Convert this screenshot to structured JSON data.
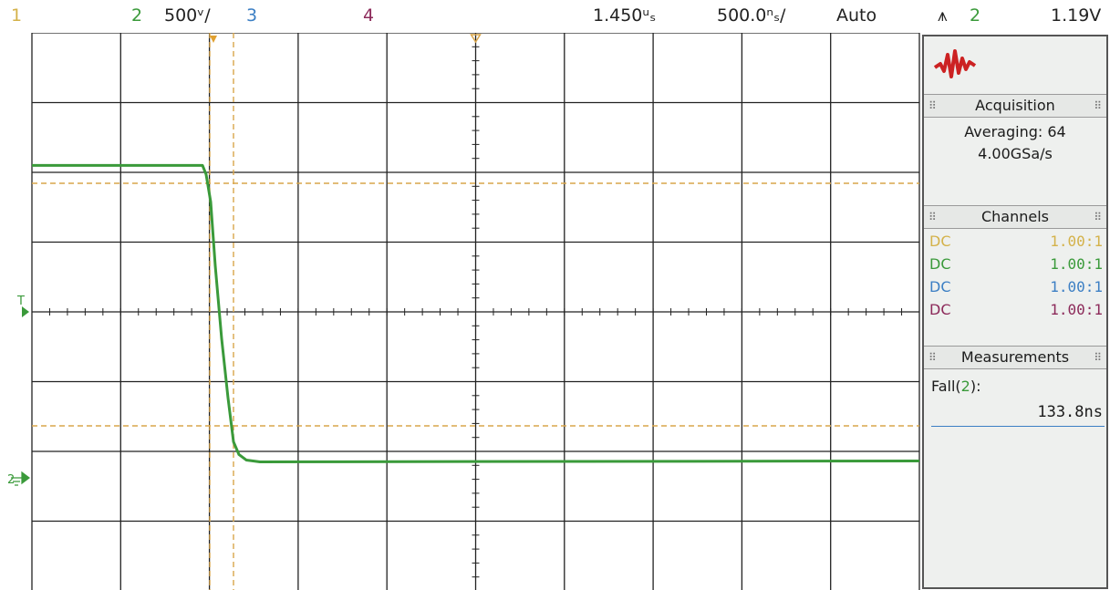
{
  "topbar": {
    "ch1_label": "1",
    "ch2_label": "2",
    "ch2_scale": "500ᵛ/",
    "ch3_label": "3",
    "ch4_label": "4",
    "time_delay": "1.450ᵘₛ",
    "time_scale": "500.0ⁿₛ/",
    "trigger_mode": "Auto",
    "trigger_symbol": "⩚",
    "trigger_channel": "2",
    "trigger_level": "1.19V"
  },
  "colors": {
    "ch1": "#d4b24a",
    "ch2": "#3a9a3a",
    "ch3": "#3c7fc4",
    "ch4": "#8c2a5a",
    "grid": "#222222",
    "cursor": "#d9a54a",
    "logo": "#cc2222"
  },
  "screen": {
    "trigger_marker": "T",
    "ground_marker": "2"
  },
  "panel": {
    "acquisition": {
      "title": "Acquisition",
      "mode": "Averaging: 64",
      "rate": "4.00GSa/s"
    },
    "channels": {
      "title": "Channels",
      "rows": [
        {
          "coupling": "DC",
          "ratio": "1.00:1"
        },
        {
          "coupling": "DC",
          "ratio": "1.00:1"
        },
        {
          "coupling": "DC",
          "ratio": "1.00:1"
        },
        {
          "coupling": "DC",
          "ratio": "1.00:1"
        }
      ]
    },
    "measurements": {
      "title": "Measurements",
      "name": "Fall(",
      "channel": "2",
      "name_close": "):",
      "value": "133.8ns"
    }
  },
  "waveform": {
    "channel": "2",
    "high_level_divs": 2.1,
    "low_level_divs": -2.15,
    "fall_time": "133.8ns"
  }
}
